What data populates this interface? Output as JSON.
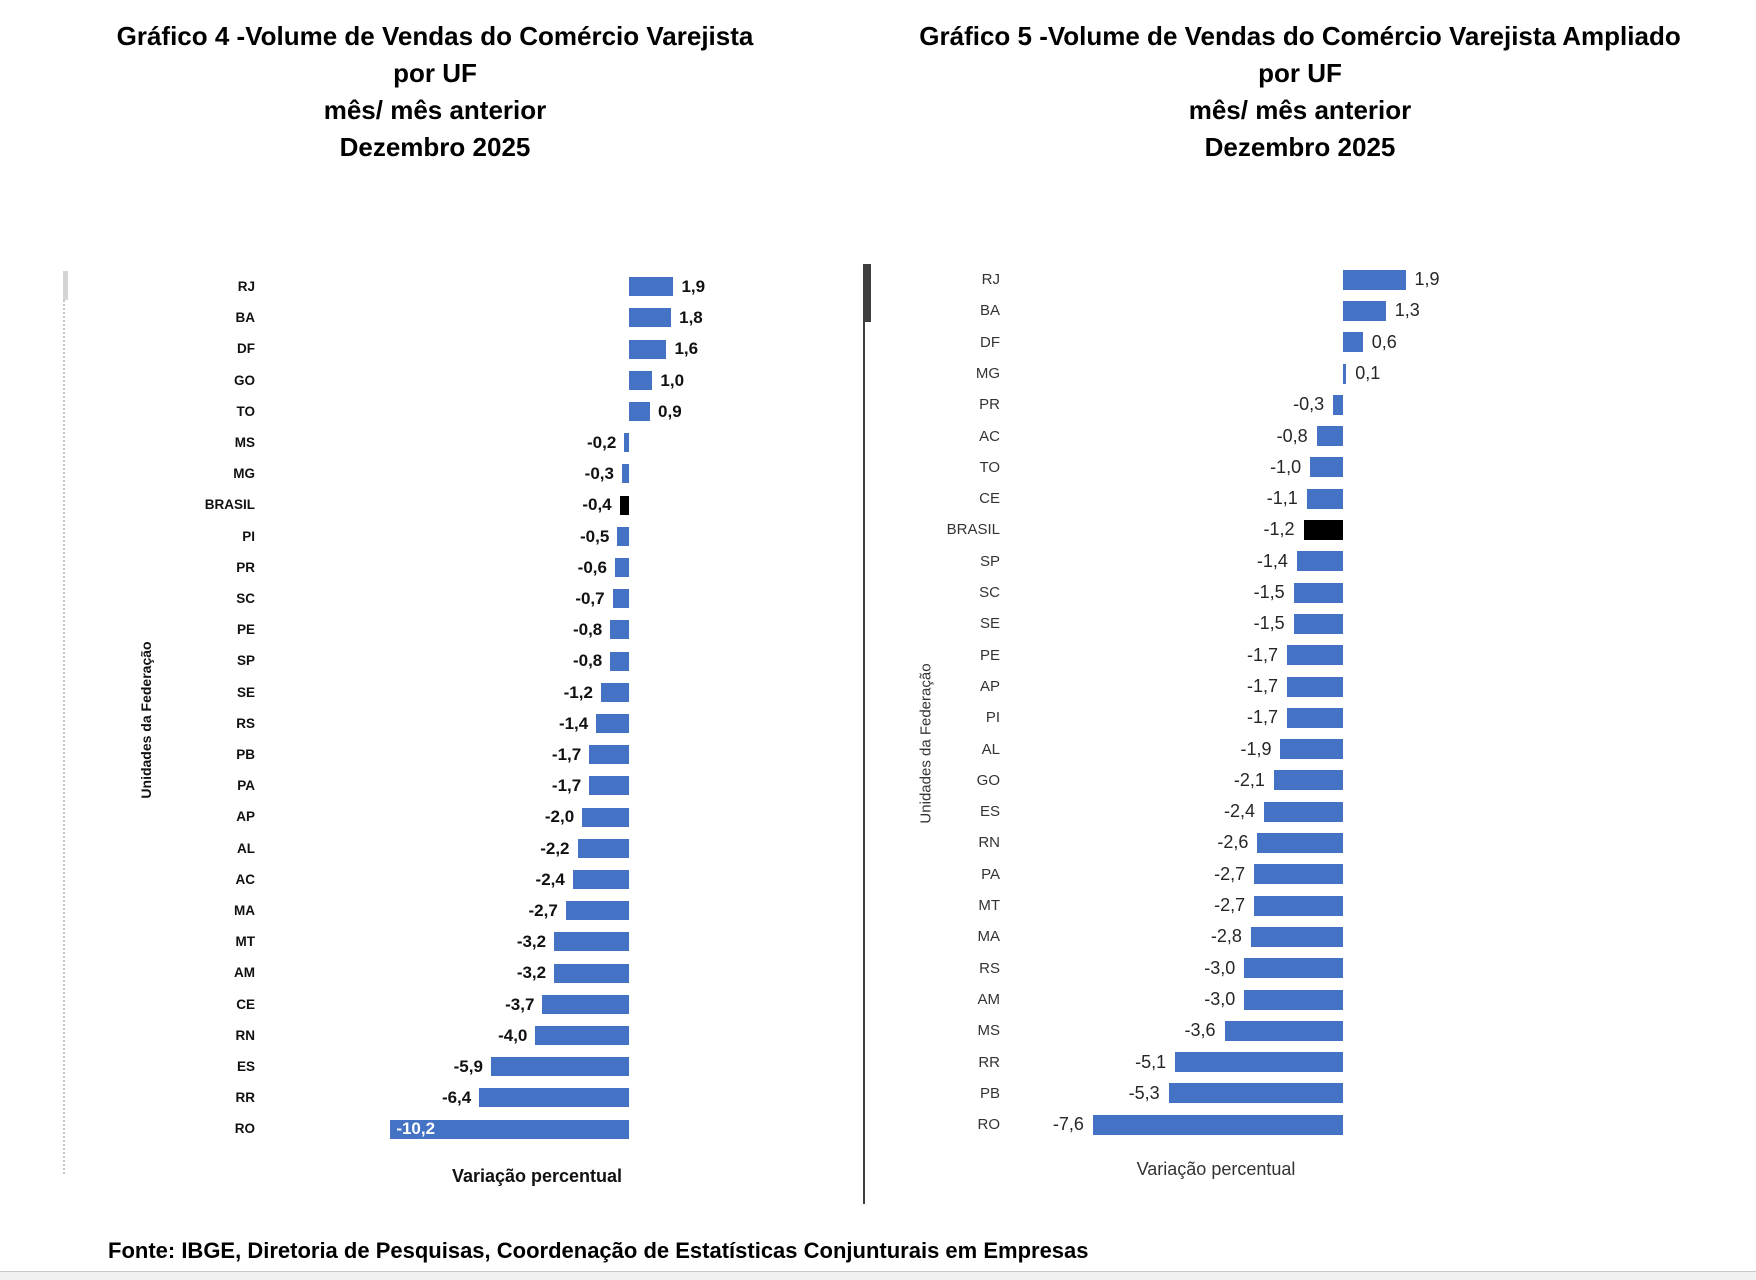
{
  "page": {
    "footer_source": "Fonte: IBGE, Diretoria de Pesquisas, Coordenação de Estatísticas Conjunturais em Empresas"
  },
  "chart_data": [
    {
      "type": "bar",
      "orientation": "horizontal",
      "title": "Gráfico 4 -Volume de Vendas do Comércio Varejista por UF mês/ mês anterior Dezembro 2025",
      "title_lines": [
        "Gráfico 4 -Volume de Vendas do Comércio Varejista",
        "por UF",
        "mês/ mês anterior",
        "Dezembro 2025"
      ],
      "xlabel": "Variação percentual",
      "ylabel": "Unidades da Federação",
      "categories": [
        "RJ",
        "BA",
        "DF",
        "GO",
        "TO",
        "MS",
        "MG",
        "BRASIL",
        "PI",
        "PR",
        "SC",
        "PE",
        "SP",
        "SE",
        "RS",
        "PB",
        "PA",
        "AP",
        "AL",
        "AC",
        "MA",
        "MT",
        "AM",
        "CE",
        "RN",
        "ES",
        "RR",
        "RO"
      ],
      "values": [
        1.9,
        1.8,
        1.6,
        1.0,
        0.9,
        -0.2,
        -0.3,
        -0.4,
        -0.5,
        -0.6,
        -0.7,
        -0.8,
        -0.8,
        -1.2,
        -1.4,
        -1.7,
        -1.7,
        -2.0,
        -2.2,
        -2.4,
        -2.7,
        -3.2,
        -3.2,
        -3.7,
        -4.0,
        -5.9,
        -6.4,
        -10.2
      ],
      "value_labels": [
        "1,9",
        "1,8",
        "1,6",
        "1,0",
        "0,9",
        "-0,2",
        "-0,3",
        "-0,4",
        "-0,5",
        "-0,6",
        "-0,7",
        "-0,8",
        "-0,8",
        "-1,2",
        "-1,4",
        "-1,7",
        "-1,7",
        "-2,0",
        "-2,2",
        "-2,4",
        "-2,7",
        "-3,2",
        "-3,2",
        "-3,7",
        "-4,0",
        "-5,9",
        "-6,4",
        "-10,2"
      ],
      "xlim": [
        -10.5,
        2.5
      ],
      "grid": false,
      "legend": false,
      "bar_color": "#4472C4",
      "highlight_category": "BRASIL",
      "highlight_color": "#000000",
      "value_label_inside": [
        "RO"
      ],
      "axis_style": "dotted-zero-line"
    },
    {
      "type": "bar",
      "orientation": "horizontal",
      "title": "Gráfico 5 -Volume de Vendas do Comércio Varejista Ampliado por UF mês/ mês anterior Dezembro 2025",
      "title_lines": [
        "Gráfico 5 -Volume de Vendas do Comércio Varejista Ampliado",
        "por UF",
        "mês/ mês anterior",
        "Dezembro 2025"
      ],
      "xlabel": "Variação percentual",
      "ylabel": "Unidades da Federação",
      "categories": [
        "RJ",
        "BA",
        "DF",
        "MG",
        "PR",
        "AC",
        "TO",
        "CE",
        "BRASIL",
        "SP",
        "SC",
        "SE",
        "PE",
        "AP",
        "PI",
        "AL",
        "GO",
        "ES",
        "RN",
        "PA",
        "MT",
        "MA",
        "RS",
        "AM",
        "MS",
        "RR",
        "PB",
        "RO"
      ],
      "values": [
        1.9,
        1.3,
        0.6,
        0.1,
        -0.3,
        -0.8,
        -1.0,
        -1.1,
        -1.2,
        -1.4,
        -1.5,
        -1.5,
        -1.7,
        -1.7,
        -1.7,
        -1.9,
        -2.1,
        -2.4,
        -2.6,
        -2.7,
        -2.7,
        -2.8,
        -3.0,
        -3.0,
        -3.6,
        -5.1,
        -5.3,
        -7.6
      ],
      "value_labels": [
        "1,9",
        "1,3",
        "0,6",
        "0,1",
        "-0,3",
        "-0,8",
        "-1,0",
        "-1,1",
        "-1,2",
        "-1,4",
        "-1,5",
        "-1,5",
        "-1,7",
        "-1,7",
        "-1,7",
        "-1,9",
        "-2,1",
        "-2,4",
        "-2,6",
        "-2,7",
        "-2,7",
        "-2,8",
        "-3,0",
        "-3,0",
        "-3,6",
        "-5,1",
        "-5,3",
        "-7,6"
      ],
      "xlim": [
        -8,
        2.5
      ],
      "grid": false,
      "legend": false,
      "bar_color": "#4472C4",
      "highlight_category": "BRASIL",
      "highlight_color": "#000000",
      "value_label_inside": [],
      "axis_style": "solid-zero-line-with-ticks"
    }
  ]
}
